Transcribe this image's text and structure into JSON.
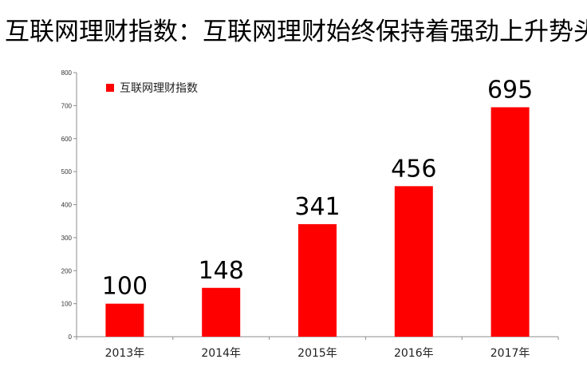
{
  "title": "互联网理财指数：互联网理财始终保持着强劲上升势头",
  "chart_data": {
    "type": "bar",
    "categories": [
      "2013年",
      "2014年",
      "2015年",
      "2016年",
      "2017年"
    ],
    "series": [
      {
        "name": "互联网理财指数",
        "values": [
          100,
          148,
          341,
          456,
          695
        ]
      }
    ],
    "ylim": [
      0,
      800
    ],
    "yticks": [
      0,
      100,
      200,
      300,
      400,
      500,
      600,
      700,
      800
    ],
    "grid": false,
    "legend": "top-left",
    "bar_color": "#ff0000"
  }
}
